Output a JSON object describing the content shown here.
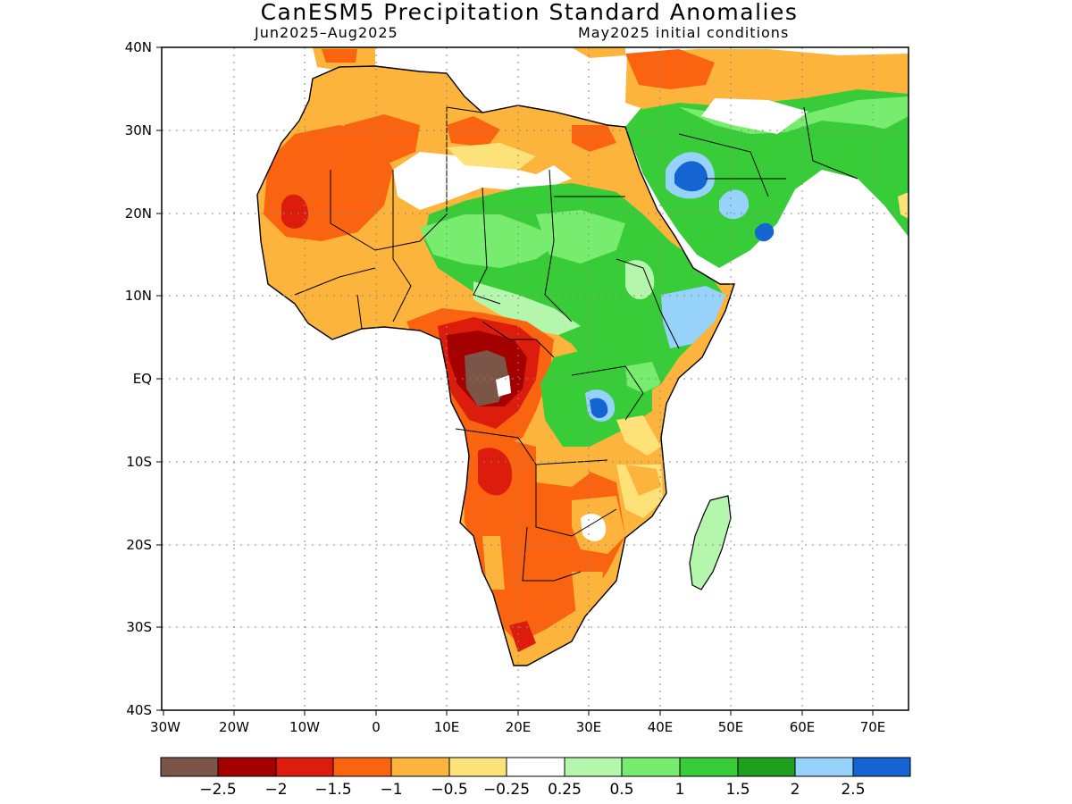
{
  "title": "CanESM5 Precipitation Standard Anomalies",
  "subtitle_left": "Jun2025–Aug2025",
  "subtitle_right": "May2025 initial conditions",
  "map": {
    "lon_range": [
      -30,
      75
    ],
    "lat_range": [
      -40,
      40
    ],
    "lat_ticks": [
      {
        "value": 40,
        "label": "40N"
      },
      {
        "value": 30,
        "label": "30N"
      },
      {
        "value": 20,
        "label": "20N"
      },
      {
        "value": 10,
        "label": "10N"
      },
      {
        "value": 0,
        "label": "EQ"
      },
      {
        "value": -10,
        "label": "10S"
      },
      {
        "value": -20,
        "label": "20S"
      },
      {
        "value": -30,
        "label": "30S"
      },
      {
        "value": -40,
        "label": "40S"
      }
    ],
    "lon_ticks": [
      {
        "value": -30,
        "label": "30W"
      },
      {
        "value": -20,
        "label": "20W"
      },
      {
        "value": -10,
        "label": "10W"
      },
      {
        "value": 0,
        "label": "0"
      },
      {
        "value": 10,
        "label": "10E"
      },
      {
        "value": 20,
        "label": "20E"
      },
      {
        "value": 30,
        "label": "30E"
      },
      {
        "value": 40,
        "label": "40E"
      },
      {
        "value": 50,
        "label": "50E"
      },
      {
        "value": 60,
        "label": "60E"
      },
      {
        "value": 70,
        "label": "70E"
      }
    ],
    "gridlines": "dotted"
  },
  "colorbar": {
    "colors": [
      "#7a5548",
      "#a50000",
      "#dc1c0c",
      "#fa6410",
      "#fcb43c",
      "#fde27a",
      "#ffffff",
      "#b3f6ac",
      "#78ec6e",
      "#39cc39",
      "#1ea01e",
      "#96d2fa",
      "#1464d2"
    ],
    "labels": [
      "−2.5",
      "−2",
      "−1.5",
      "−1",
      "−0.5",
      "−0.25",
      "0.25",
      "0.5",
      "1",
      "1.5",
      "2",
      "2.5"
    ]
  }
}
